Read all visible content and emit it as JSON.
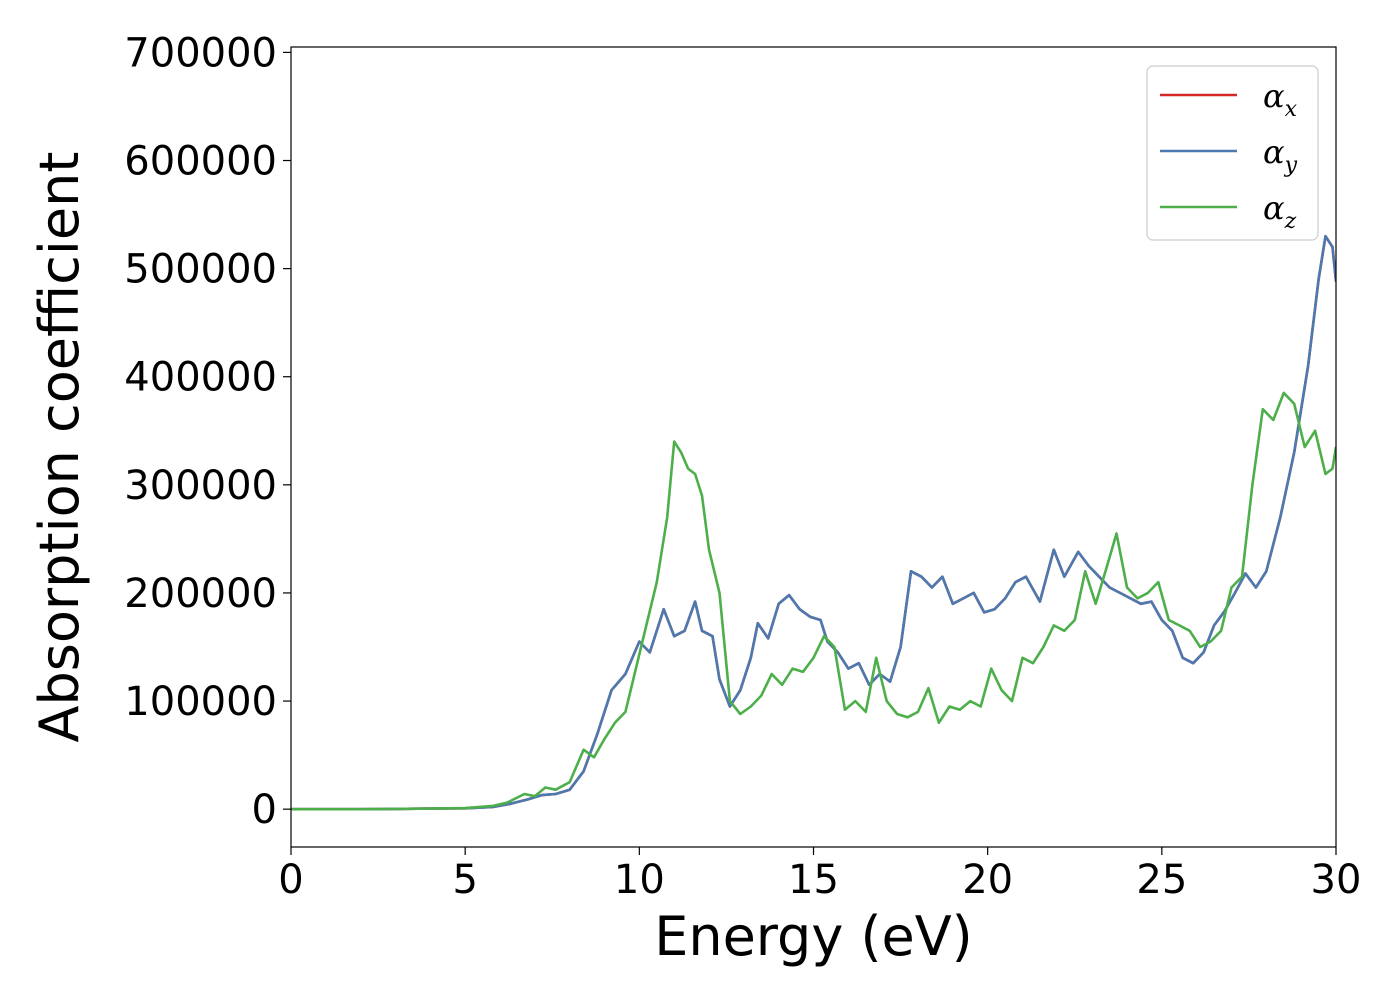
{
  "chart_data": {
    "type": "line",
    "title": "",
    "xlabel": "Energy (eV)",
    "ylabel": "Absorption coefficient",
    "xlim": [
      0,
      30
    ],
    "ylim": [
      -35000,
      705000
    ],
    "xticks": [
      0,
      5,
      10,
      15,
      20,
      25,
      30
    ],
    "xtick_labels": [
      "0",
      "5",
      "10",
      "15",
      "20",
      "25",
      "30"
    ],
    "yticks": [
      0,
      100000,
      200000,
      300000,
      400000,
      500000,
      600000,
      700000
    ],
    "ytick_labels": [
      "0",
      "100000",
      "200000",
      "300000",
      "400000",
      "500000",
      "600000",
      "700000"
    ],
    "grid": false,
    "legend": {
      "placement": "top-right"
    },
    "series": [
      {
        "name": "αx",
        "legend_base": "α",
        "legend_sub": "x",
        "color": "#d62728",
        "x": [
          0,
          2,
          4,
          5,
          5.8,
          6.3,
          6.8,
          7.2,
          7.6,
          8.0,
          8.4,
          8.8,
          9.2,
          9.6,
          10.0,
          10.3,
          10.7,
          11.0,
          11.3,
          11.6,
          11.8,
          12.1,
          12.3,
          12.6,
          12.9,
          13.2,
          13.4,
          13.7,
          14.0,
          14.3,
          14.6,
          14.9,
          15.2,
          15.4,
          15.7,
          16.0,
          16.3,
          16.6,
          16.9,
          17.2,
          17.5,
          17.8,
          18.1,
          18.4,
          18.7,
          19.0,
          19.3,
          19.6,
          19.9,
          20.2,
          20.5,
          20.8,
          21.1,
          21.5,
          21.9,
          22.2,
          22.6,
          22.9,
          23.2,
          23.5,
          23.8,
          24.1,
          24.4,
          24.7,
          25.0,
          25.3,
          25.6,
          25.9,
          26.2,
          26.5,
          26.8,
          27.1,
          27.4,
          27.7,
          28.0,
          28.4,
          28.8,
          29.2,
          29.5,
          29.7,
          29.9,
          30.0
        ],
        "y": [
          0,
          0,
          500,
          800,
          2000,
          5000,
          9000,
          13000,
          14000,
          18000,
          35000,
          70000,
          110000,
          125000,
          155000,
          145000,
          185000,
          160000,
          165000,
          192000,
          165000,
          160000,
          120000,
          95000,
          110000,
          140000,
          172000,
          158000,
          190000,
          198000,
          185000,
          178000,
          175000,
          155000,
          145000,
          130000,
          135000,
          115000,
          125000,
          118000,
          150000,
          220000,
          215000,
          205000,
          215000,
          190000,
          195000,
          200000,
          182000,
          185000,
          195000,
          210000,
          215000,
          192000,
          240000,
          215000,
          238000,
          225000,
          215000,
          205000,
          200000,
          195000,
          190000,
          192000,
          175000,
          165000,
          140000,
          135000,
          145000,
          170000,
          183000,
          200000,
          218000,
          205000,
          220000,
          270000,
          330000,
          410000,
          490000,
          530000,
          520000,
          488000
        ]
      },
      {
        "name": "αy",
        "legend_base": "α",
        "legend_sub": "y",
        "color": "#4a7ab0",
        "x": [
          0,
          2,
          4,
          5,
          5.8,
          6.3,
          6.8,
          7.2,
          7.6,
          8.0,
          8.4,
          8.8,
          9.2,
          9.6,
          10.0,
          10.3,
          10.7,
          11.0,
          11.3,
          11.6,
          11.8,
          12.1,
          12.3,
          12.6,
          12.9,
          13.2,
          13.4,
          13.7,
          14.0,
          14.3,
          14.6,
          14.9,
          15.2,
          15.4,
          15.7,
          16.0,
          16.3,
          16.6,
          16.9,
          17.2,
          17.5,
          17.8,
          18.1,
          18.4,
          18.7,
          19.0,
          19.3,
          19.6,
          19.9,
          20.2,
          20.5,
          20.8,
          21.1,
          21.5,
          21.9,
          22.2,
          22.6,
          22.9,
          23.2,
          23.5,
          23.8,
          24.1,
          24.4,
          24.7,
          25.0,
          25.3,
          25.6,
          25.9,
          26.2,
          26.5,
          26.8,
          27.1,
          27.4,
          27.7,
          28.0,
          28.4,
          28.8,
          29.2,
          29.5,
          29.7,
          29.9,
          30.0
        ],
        "y": [
          0,
          0,
          500,
          800,
          2000,
          5000,
          9000,
          13000,
          14000,
          18000,
          35000,
          70000,
          110000,
          125000,
          155000,
          145000,
          185000,
          160000,
          165000,
          192000,
          165000,
          160000,
          120000,
          95000,
          110000,
          140000,
          172000,
          158000,
          190000,
          198000,
          185000,
          178000,
          175000,
          155000,
          145000,
          130000,
          135000,
          115000,
          125000,
          118000,
          150000,
          220000,
          215000,
          205000,
          215000,
          190000,
          195000,
          200000,
          182000,
          185000,
          195000,
          210000,
          215000,
          192000,
          240000,
          215000,
          238000,
          225000,
          215000,
          205000,
          200000,
          195000,
          190000,
          192000,
          175000,
          165000,
          140000,
          135000,
          145000,
          170000,
          183000,
          200000,
          218000,
          205000,
          220000,
          270000,
          330000,
          410000,
          490000,
          530000,
          520000,
          488000
        ]
      },
      {
        "name": "αz",
        "legend_base": "α",
        "legend_sub": "z",
        "color": "#4daf4a",
        "x": [
          0,
          2,
          4,
          5,
          5.8,
          6.2,
          6.7,
          7.0,
          7.3,
          7.6,
          8.0,
          8.4,
          8.7,
          9.0,
          9.3,
          9.6,
          9.9,
          10.2,
          10.5,
          10.8,
          11.0,
          11.2,
          11.4,
          11.6,
          11.8,
          12.0,
          12.3,
          12.6,
          12.9,
          13.2,
          13.5,
          13.8,
          14.1,
          14.4,
          14.7,
          15.0,
          15.3,
          15.6,
          15.9,
          16.2,
          16.5,
          16.8,
          17.1,
          17.4,
          17.7,
          18.0,
          18.3,
          18.6,
          18.9,
          19.2,
          19.5,
          19.8,
          20.1,
          20.4,
          20.7,
          21.0,
          21.3,
          21.6,
          21.9,
          22.2,
          22.5,
          22.8,
          23.1,
          23.4,
          23.7,
          24.0,
          24.3,
          24.6,
          24.9,
          25.2,
          25.5,
          25.8,
          26.1,
          26.4,
          26.7,
          27.0,
          27.3,
          27.6,
          27.9,
          28.2,
          28.5,
          28.8,
          29.1,
          29.4,
          29.7,
          29.9,
          30.0
        ],
        "y": [
          0,
          0,
          500,
          1000,
          3000,
          6000,
          14000,
          12000,
          20000,
          18000,
          25000,
          55000,
          48000,
          65000,
          80000,
          90000,
          130000,
          170000,
          210000,
          270000,
          340000,
          330000,
          315000,
          310000,
          290000,
          240000,
          200000,
          100000,
          88000,
          95000,
          105000,
          125000,
          115000,
          130000,
          127000,
          140000,
          160000,
          150000,
          92000,
          100000,
          90000,
          140000,
          100000,
          88000,
          85000,
          90000,
          112000,
          80000,
          95000,
          92000,
          100000,
          95000,
          130000,
          110000,
          100000,
          140000,
          135000,
          150000,
          170000,
          165000,
          175000,
          220000,
          190000,
          222000,
          255000,
          205000,
          195000,
          200000,
          210000,
          175000,
          170000,
          165000,
          150000,
          155000,
          165000,
          205000,
          215000,
          300000,
          370000,
          360000,
          385000,
          375000,
          335000,
          350000,
          310000,
          315000,
          335000
        ]
      }
    ]
  }
}
